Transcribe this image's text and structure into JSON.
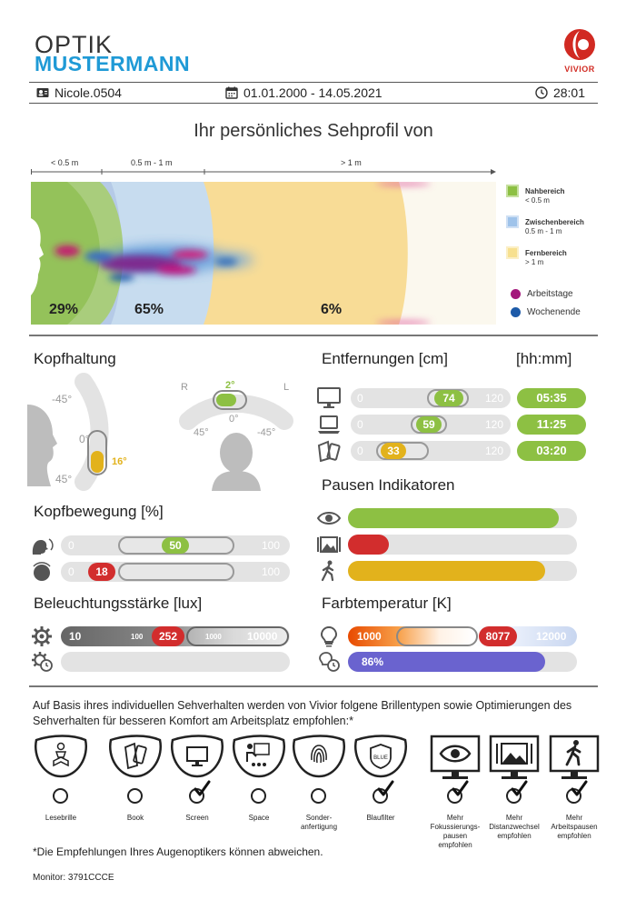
{
  "header": {
    "brand_line1": "OPTIK",
    "brand_line2": "MUSTERMANN",
    "logo_text": "VIVIOR",
    "user": "Nicole.0504",
    "date_range": "01.01.2000 - 14.05.2021",
    "time": "28:01"
  },
  "title": "Ihr persönliches Sehprofil von",
  "ruler": {
    "near": "< 0.5 m",
    "mid": "0.5 m - 1 m",
    "far": "> 1 m"
  },
  "profile": {
    "near_pct": "29%",
    "mid_pct": "65%",
    "far_pct": "6%"
  },
  "legend": {
    "near_title": "Nahbereich",
    "near_sub": "< 0.5 m",
    "mid_title": "Zwischenbereich",
    "mid_sub": "0.5 m - 1 m",
    "far_title": "Fernbereich",
    "far_sub": "> 1 m",
    "workdays": "Arbeitstage",
    "weekend": "Wochenende"
  },
  "colors": {
    "green": "#8dc043",
    "blue": "#9fc3ea",
    "yellow": "#f7e08f",
    "magenta": "#b5177f",
    "darkblue": "#1d5aa8",
    "red": "#d22d2d",
    "amber": "#e2b21c",
    "purple": "#6a63cf"
  },
  "head_posture": {
    "title": "Kopfhaltung",
    "side": {
      "top": "-45°",
      "zero": "0°",
      "bottom": "45°",
      "value": "16°"
    },
    "front": {
      "r": "R",
      "l": "L",
      "value": "2°",
      "zero": "0°",
      "left": "45°",
      "right": "-45°"
    }
  },
  "distances": {
    "title": "Entfernungen [cm]",
    "time_header": "[hh:mm]",
    "rows": [
      {
        "device": "monitor-icon",
        "min": "0",
        "max": "120",
        "value": "74",
        "time": "05:35"
      },
      {
        "device": "laptop-icon",
        "min": "0",
        "max": "120",
        "value": "59",
        "time": "11:25"
      },
      {
        "device": "book-phone-icon",
        "min": "0",
        "max": "120",
        "value": "33",
        "time": "03:20"
      }
    ]
  },
  "head_movement": {
    "title": "Kopfbewegung [%]",
    "rows": [
      {
        "icon": "head-rotate-icon",
        "min": "0",
        "max": "100",
        "value": "50"
      },
      {
        "icon": "head-tilt-icon",
        "min": "0",
        "max": "100",
        "value": "18"
      }
    ]
  },
  "break_indicators": {
    "title": "Pausen Indikatoren",
    "rows": [
      {
        "icon": "eye-icon",
        "level": 0.92
      },
      {
        "icon": "landscape-icon",
        "level": 0.18
      },
      {
        "icon": "walking-icon",
        "level": 0.86
      }
    ]
  },
  "illuminance": {
    "title": "Beleuchtungsstärke [lux]",
    "min": "10",
    "mid1": "100",
    "value": "252",
    "mid2": "1000",
    "max": "10000"
  },
  "color_temp": {
    "title": "Farbtemperatur [K]",
    "min": "1000",
    "value": "8077",
    "max": "12000",
    "share": "86%"
  },
  "recommendation": {
    "text": "Auf Basis ihres individuellen Sehverhalten werden von Vivior folgene Brillentypen sowie Optimierungen des Sehverhalten für besseren Komfort am Arbeitsplatz empfohlen:*",
    "lenses": [
      {
        "label": "Lesebrille",
        "checked": false
      },
      {
        "label": "Book",
        "checked": false
      },
      {
        "label": "Screen",
        "checked": true
      },
      {
        "label": "Space",
        "checked": false
      },
      {
        "label": "Sonder-\nanfertigung",
        "checked": false
      },
      {
        "label": "Blaufilter",
        "checked": true,
        "badge": "BLUE"
      }
    ],
    "habits": [
      {
        "label": "Mehr\nFokussierungs-\npausen\nempfohlen",
        "checked": true
      },
      {
        "label": "Mehr\nDistanzwechsel\nempfohlen",
        "checked": true
      },
      {
        "label": "Mehr\nArbeitspausen\nempfohlen",
        "checked": true
      }
    ],
    "footnote": "*Die Empfehlungen Ihres Augenoptikers können abweichen.",
    "monitor": "Monitor: 3791CCCE"
  }
}
